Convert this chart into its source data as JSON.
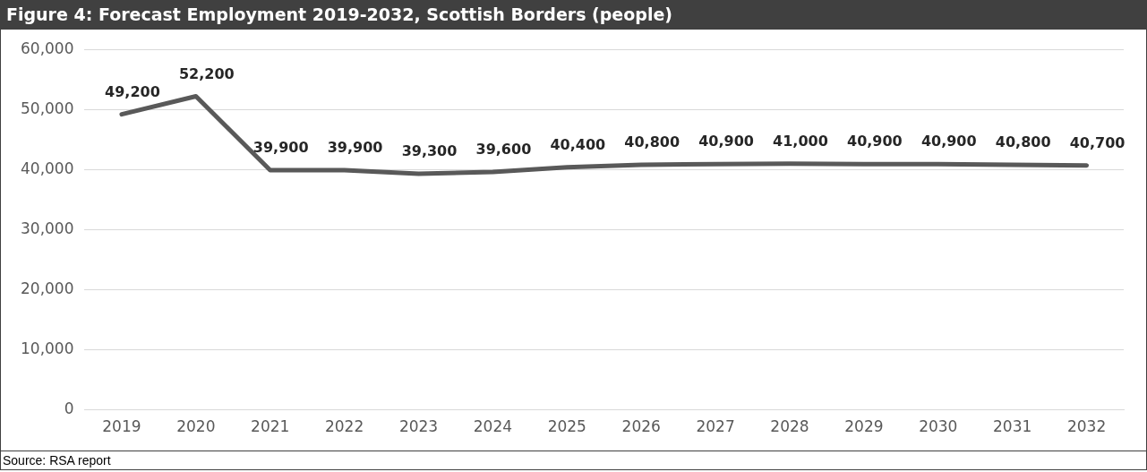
{
  "chart_data": {
    "type": "line",
    "title": "Figure 4: Forecast Employment 2019-2032, Scottish Borders (people)",
    "categories": [
      "2019",
      "2020",
      "2021",
      "2022",
      "2023",
      "2024",
      "2025",
      "2026",
      "2027",
      "2028",
      "2029",
      "2030",
      "2031",
      "2032"
    ],
    "values": [
      49200,
      52200,
      39900,
      39900,
      39300,
      39600,
      40400,
      40800,
      40900,
      41000,
      40900,
      40900,
      40800,
      40700
    ],
    "value_labels": [
      "49,200",
      "52,200",
      "39,900",
      "39,900",
      "39,300",
      "39,600",
      "40,400",
      "40,800",
      "40,900",
      "41,000",
      "40,900",
      "40,900",
      "40,800",
      "40,700"
    ],
    "color": "#595959",
    "ylim": [
      0,
      60000
    ],
    "yticks": [
      {
        "value": 0,
        "label": "0"
      },
      {
        "value": 10000,
        "label": "10,000"
      },
      {
        "value": 20000,
        "label": "20,000"
      },
      {
        "value": 30000,
        "label": "30,000"
      },
      {
        "value": 40000,
        "label": "40,000"
      },
      {
        "value": 50000,
        "label": "50,000"
      },
      {
        "value": 60000,
        "label": "60,000"
      }
    ],
    "grid": "y",
    "legend": false,
    "marker": "none",
    "line_style": "solid",
    "annotations": [
      "Source: RSA report"
    ]
  }
}
